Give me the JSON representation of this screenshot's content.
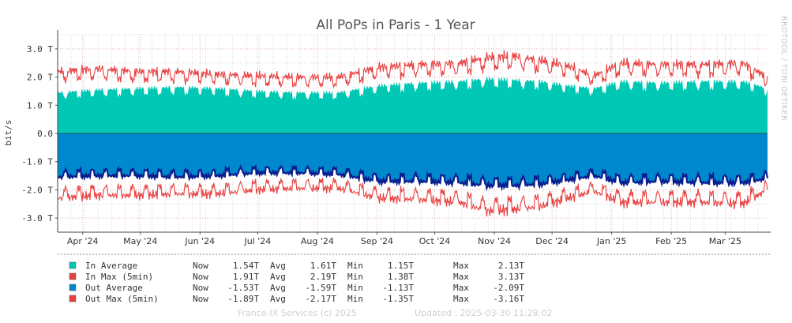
{
  "chart_data": {
    "type": "area",
    "title": "All PoPs in Paris - 1 Year",
    "ylabel": "bit/s",
    "watermark": "RRDTOOL / TOBI OETIKER",
    "ylim": [
      -3.5,
      3.5
    ],
    "y_unit": "T (10^12 bit/s)",
    "yticks": [
      {
        "value": 3,
        "label": "3.0 T"
      },
      {
        "value": 2,
        "label": "2.0 T"
      },
      {
        "value": 1,
        "label": "1.0 T"
      },
      {
        "value": 0,
        "label": "0.0"
      },
      {
        "value": -1,
        "label": "-1.0 T"
      },
      {
        "value": -2,
        "label": "-2.0 T"
      },
      {
        "value": -3,
        "label": "-3.0 T"
      }
    ],
    "x_range": [
      "2024-03-26",
      "2025-03-30"
    ],
    "xticks": [
      {
        "date": "2024-04-08",
        "label": "Apr '24"
      },
      {
        "date": "2024-05-08",
        "label": "May '24"
      },
      {
        "date": "2024-06-08",
        "label": "Jun '24"
      },
      {
        "date": "2024-07-08",
        "label": "Jul '24"
      },
      {
        "date": "2024-08-08",
        "label": "Aug '24"
      },
      {
        "date": "2024-09-08",
        "label": "Sep '24"
      },
      {
        "date": "2024-10-08",
        "label": "Oct '24"
      },
      {
        "date": "2024-11-08",
        "label": "Nov '24"
      },
      {
        "date": "2024-12-08",
        "label": "Dec '24"
      },
      {
        "date": "2025-01-08",
        "label": "Jan '25"
      },
      {
        "date": "2025-02-08",
        "label": "Feb '25"
      },
      {
        "date": "2025-03-08",
        "label": "Mar '25"
      }
    ],
    "grid": true,
    "colors": {
      "in_average": "#00c8b4",
      "in_max": "#e84040",
      "out_average": "#0088cc",
      "out_average_edge": "#0a1f8f",
      "out_max": "#e84040",
      "background": "#ffffff",
      "grid_major": "#e0b0b0",
      "grid_minor": "#d8d8d8"
    },
    "weekly_profile": {
      "x": [
        "2024-03-26",
        "2024-04-15",
        "2024-05-06",
        "2024-05-27",
        "2024-06-17",
        "2024-07-08",
        "2024-07-29",
        "2024-08-19",
        "2024-09-09",
        "2024-09-30",
        "2024-10-21",
        "2024-11-04",
        "2024-11-18",
        "2024-12-02",
        "2024-12-16",
        "2024-12-30",
        "2025-01-13",
        "2025-02-03",
        "2025-02-24",
        "2025-03-17",
        "2025-03-30"
      ],
      "in_average_peak": [
        1.45,
        1.55,
        1.6,
        1.65,
        1.6,
        1.5,
        1.45,
        1.45,
        1.7,
        1.8,
        1.85,
        1.95,
        1.9,
        1.85,
        1.7,
        1.6,
        1.85,
        1.8,
        1.85,
        1.85,
        1.6
      ],
      "in_max_peak": [
        2.2,
        2.3,
        2.2,
        2.2,
        2.1,
        2.05,
        2.0,
        2.0,
        2.35,
        2.45,
        2.5,
        2.7,
        2.75,
        2.6,
        2.4,
        2.05,
        2.5,
        2.45,
        2.45,
        2.5,
        2.0
      ],
      "out_average_peak": [
        -1.55,
        -1.5,
        -1.5,
        -1.55,
        -1.5,
        -1.4,
        -1.4,
        -1.45,
        -1.7,
        -1.7,
        -1.75,
        -1.85,
        -1.85,
        -1.8,
        -1.65,
        -1.5,
        -1.75,
        -1.7,
        -1.75,
        -1.75,
        -1.6
      ],
      "out_max_peak": [
        -2.3,
        -2.2,
        -2.2,
        -2.15,
        -2.15,
        -2.0,
        -1.95,
        -1.95,
        -2.3,
        -2.35,
        -2.45,
        -2.75,
        -2.7,
        -2.6,
        -2.3,
        -2.05,
        -2.45,
        -2.45,
        -2.45,
        -2.5,
        -2.0
      ]
    },
    "series": [
      {
        "name": "In Average",
        "now": "1.54T",
        "avg": "1.61T",
        "min": "1.15T",
        "max": "2.13T"
      },
      {
        "name": "In Max (5min)",
        "now": "1.91T",
        "avg": "2.19T",
        "min": "1.38T",
        "max": "3.13T"
      },
      {
        "name": "Out Average",
        "now": "-1.53T",
        "avg": "-1.59T",
        "min": "-1.13T",
        "max": "-2.09T"
      },
      {
        "name": "Out Max (5min)",
        "now": "-1.89T",
        "avg": "-2.17T",
        "min": "-1.35T",
        "max": "-3.16T"
      }
    ],
    "legend_labels": {
      "now": "Now",
      "avg": "Avg",
      "min": "Min",
      "max": "Max"
    }
  },
  "footer": {
    "credit": "France-IX Services (c) 2025",
    "updated": "Updated : 2025-03-30 11:28:02"
  }
}
